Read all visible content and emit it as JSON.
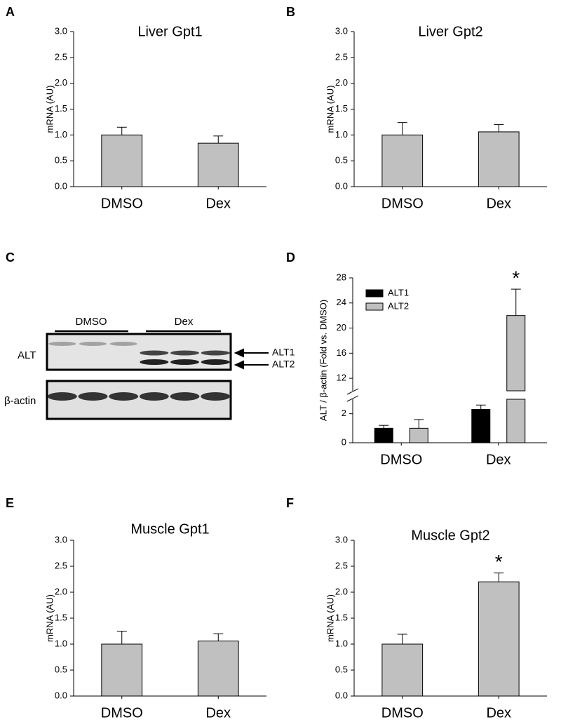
{
  "chart_data": [
    {
      "type": "bar",
      "label": "A",
      "title": "Liver Gpt1",
      "ylabel": "mRNA (AU)",
      "categories": [
        "DMSO",
        "Dex"
      ],
      "values": [
        1.0,
        0.84
      ],
      "errors": [
        0.15,
        0.14
      ],
      "color": "#c0c0c0",
      "ylim": [
        0,
        3
      ],
      "yticks": [
        {
          "value": 0,
          "label": "0.0"
        },
        0.5,
        {
          "value": 1,
          "label": "1.0"
        },
        1.5,
        {
          "value": 2,
          "label": "2.0"
        },
        2.5,
        {
          "value": 3,
          "label": "3.0"
        }
      ]
    },
    {
      "type": "bar",
      "label": "B",
      "title": "Liver Gpt2",
      "ylabel": "mRNA (AU)",
      "categories": [
        "DMSO",
        "Dex"
      ],
      "values": [
        1.0,
        1.06
      ],
      "errors": [
        0.24,
        0.14
      ],
      "color": "#c0c0c0",
      "ylim": [
        0,
        3
      ],
      "yticks": [
        {
          "value": 0,
          "label": "0.0"
        },
        0.5,
        {
          "value": 1,
          "label": "1.0"
        },
        1.5,
        {
          "value": 2,
          "label": "2.0"
        },
        2.5,
        {
          "value": 3,
          "label": "3.0"
        }
      ]
    },
    {
      "type": "bar",
      "label": "D",
      "ylabel": "ALT / β-actin (Fold vs. DMSO)",
      "categories": [
        "DMSO",
        "Dex"
      ],
      "series": [
        {
          "name": "ALT1",
          "color": "#000000",
          "values": [
            1.0,
            2.3
          ],
          "errors": [
            0.2,
            0.3
          ]
        },
        {
          "name": "ALT2",
          "color": "#c0c0c0",
          "values": [
            1.0,
            22
          ],
          "errors": [
            0.6,
            4.2
          ]
        }
      ],
      "ylim": [
        0,
        28
      ],
      "ybreak": [
        3,
        10
      ],
      "yticks": [
        0,
        2,
        12,
        16,
        20,
        24,
        28
      ],
      "legend": "upper left",
      "annotations": [
        {
          "text": "*",
          "x": "Dex",
          "series": "ALT2"
        }
      ]
    },
    {
      "type": "bar",
      "label": "E",
      "title": "Muscle Gpt1",
      "ylabel": "mRNA (AU)",
      "categories": [
        "DMSO",
        "Dex"
      ],
      "values": [
        1.0,
        1.06
      ],
      "errors": [
        0.25,
        0.14
      ],
      "color": "#c0c0c0",
      "ylim": [
        0,
        3
      ],
      "yticks": [
        {
          "value": 0,
          "label": "0.0"
        },
        0.5,
        {
          "value": 1,
          "label": "1.0"
        },
        1.5,
        {
          "value": 2,
          "label": "2.0"
        },
        2.5,
        {
          "value": 3,
          "label": "3.0"
        }
      ]
    },
    {
      "type": "bar",
      "label": "F",
      "title": "Muscle Gpt2",
      "ylabel": "mRNA (AU)",
      "categories": [
        "DMSO",
        "Dex"
      ],
      "values": [
        1.0,
        2.2
      ],
      "errors": [
        0.19,
        0.17
      ],
      "color": "#c0c0c0",
      "ylim": [
        0,
        3
      ],
      "yticks": [
        {
          "value": 0,
          "label": "0.0"
        },
        0.5,
        {
          "value": 1,
          "label": "1.0"
        },
        1.5,
        {
          "value": 2,
          "label": "2.0"
        },
        2.5,
        {
          "value": 3,
          "label": "3.0"
        }
      ],
      "annotations": [
        {
          "text": "*",
          "x": "Dex"
        }
      ]
    }
  ],
  "blot": {
    "label": "C",
    "groups": [
      "DMSO",
      "Dex"
    ],
    "rows": [
      "ALT",
      "β-actin"
    ],
    "arrows": [
      "ALT1",
      "ALT2"
    ]
  }
}
